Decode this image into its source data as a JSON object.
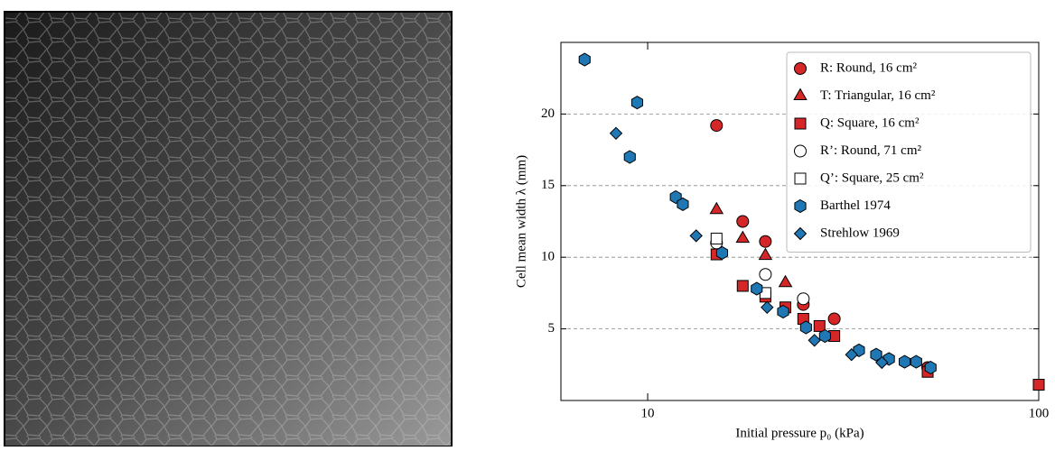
{
  "chart_data": {
    "type": "scatter",
    "xlabel": "Initial pressure p₀ (kPa)",
    "ylabel": "Cell mean width λ (mm)",
    "xscale": "log",
    "xlim": [
      6,
      100
    ],
    "xticks": [
      10,
      100
    ],
    "ylim": [
      0,
      25
    ],
    "yticks": [
      5,
      10,
      15,
      20
    ],
    "grid": "y",
    "legend": "upper right",
    "series": [
      {
        "name": "R: Round, 16 cm²",
        "marker": "circle",
        "color": "#d62728",
        "x": [
          15,
          17.5,
          20,
          25,
          30,
          52
        ],
        "y": [
          19.2,
          12.5,
          11.1,
          6.7,
          5.7,
          2.3
        ]
      },
      {
        "name": "T: Triangular, 16 cm²",
        "marker": "triangle",
        "color": "#d62728",
        "x": [
          15,
          17.5,
          20,
          22.5
        ],
        "y": [
          13.3,
          11.3,
          10.1,
          8.2
        ]
      },
      {
        "name": "Q: Square, 16 cm²",
        "marker": "square",
        "color": "#d62728",
        "x": [
          15,
          17.5,
          20,
          22.5,
          25,
          27.5,
          30,
          52,
          100
        ],
        "y": [
          10.2,
          8.0,
          7.25,
          6.5,
          5.7,
          5.2,
          4.5,
          2.0,
          1.1
        ]
      },
      {
        "name": "R’: Round, 71 cm²",
        "marker": "circle",
        "color": "#ffffff",
        "x": [
          15,
          20,
          25
        ],
        "y": [
          11.0,
          8.8,
          7.1
        ]
      },
      {
        "name": "Q’: Square, 25 cm²",
        "marker": "square",
        "color": "#ffffff",
        "x": [
          15,
          20
        ],
        "y": [
          11.3,
          7.5
        ]
      },
      {
        "name": "Barthel 1974",
        "marker": "hexagon",
        "color": "#1f77b4",
        "x": [
          6.9,
          9.4,
          9.0,
          11.8,
          12.3,
          15.5,
          19,
          22.2,
          25.4,
          28.4,
          34.7,
          38.4,
          41.4,
          45.4,
          48.6,
          52.9
        ],
        "y": [
          23.8,
          20.8,
          17.0,
          14.2,
          13.7,
          10.3,
          7.8,
          6.2,
          5.1,
          4.5,
          3.5,
          3.2,
          2.9,
          2.7,
          2.7,
          2.3
        ]
      },
      {
        "name": "Strehlow 1969",
        "marker": "diamond",
        "color": "#1f77b4",
        "x": [
          8.3,
          13.3,
          20.2,
          26.7,
          33.2,
          39.7
        ],
        "y": [
          18.65,
          11.5,
          6.5,
          4.2,
          3.2,
          2.65
        ]
      }
    ]
  }
}
